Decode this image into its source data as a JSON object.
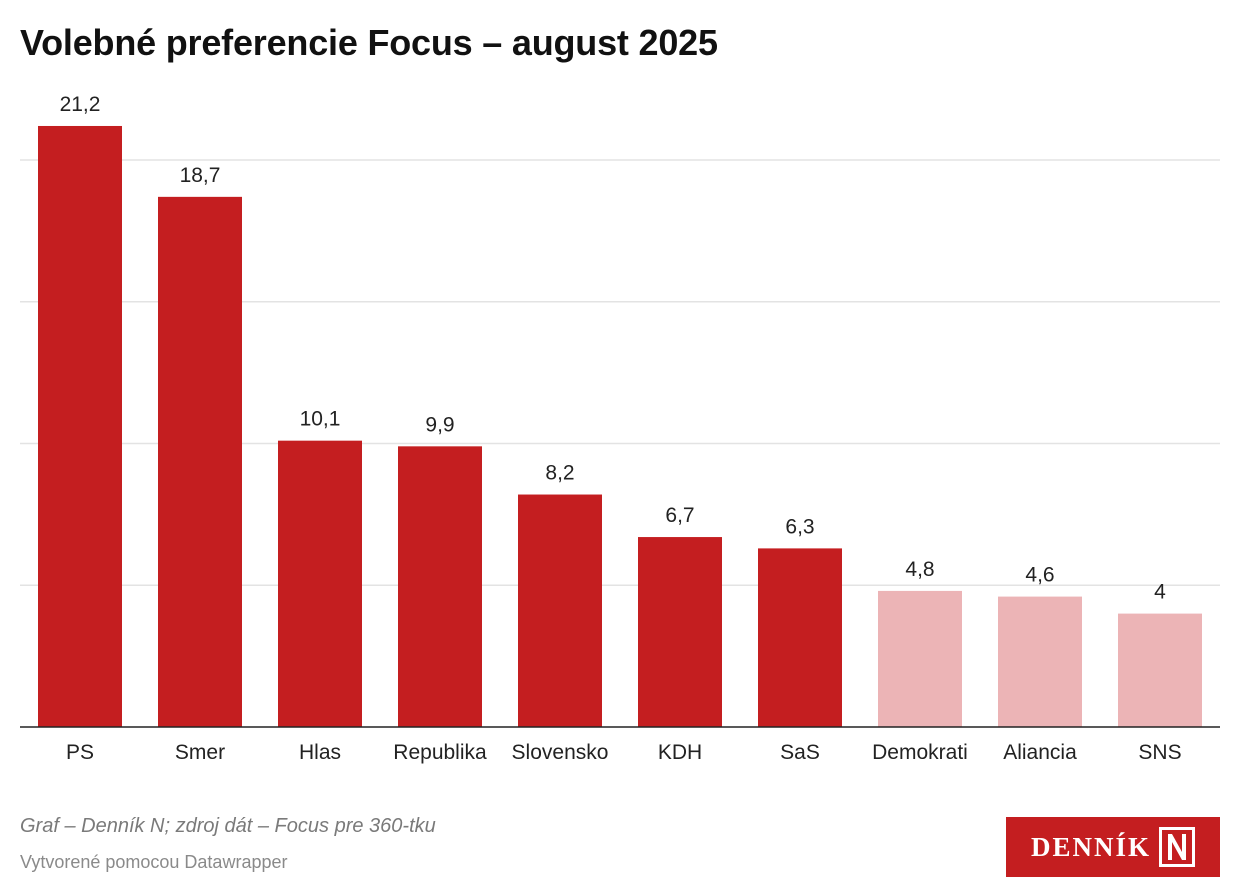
{
  "chart_data": {
    "type": "bar",
    "title": "Volebné preferencie Focus – august 2025",
    "categories": [
      "PS",
      "Smer",
      "Hlas",
      "Republika",
      "Slovensko",
      "KDH",
      "SaS",
      "Demokrati",
      "Aliancia",
      "SNS"
    ],
    "values": [
      21.2,
      18.7,
      10.1,
      9.9,
      8.2,
      6.7,
      6.3,
      4.8,
      4.6,
      4
    ],
    "value_labels": [
      "21,2",
      "18,7",
      "10,1",
      "9,9",
      "8,2",
      "6,7",
      "6,3",
      "4,8",
      "4,6",
      "4"
    ],
    "highlight": [
      true,
      true,
      true,
      true,
      true,
      true,
      true,
      false,
      false,
      false
    ],
    "ylim": [
      0,
      20
    ],
    "gridlines": [
      5,
      10,
      15,
      20
    ],
    "xlabel": "",
    "ylabel": ""
  },
  "colors": {
    "bar_primary": "#c41e20",
    "bar_secondary": "#ecb4b6",
    "gridline": "#e3e3e3",
    "axis": "#222222"
  },
  "footer": {
    "source": "Graf – Denník N; zdroj dát – Focus pre 360-tku",
    "credit": "Vytvorené pomocou Datawrapper"
  },
  "logo": {
    "text": "DENNÍK",
    "mark": "N"
  }
}
